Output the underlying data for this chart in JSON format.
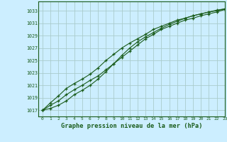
{
  "title": "Graphe pression niveau de la mer (hPa)",
  "xlim": [
    -0.5,
    23
  ],
  "ylim": [
    1016.0,
    1034.5
  ],
  "yticks": [
    1017,
    1019,
    1021,
    1023,
    1025,
    1027,
    1029,
    1031,
    1033
  ],
  "xticks": [
    0,
    1,
    2,
    3,
    4,
    5,
    6,
    7,
    8,
    9,
    10,
    11,
    12,
    13,
    14,
    15,
    16,
    17,
    18,
    19,
    20,
    21,
    22,
    23
  ],
  "bg_color": "#cceeff",
  "line_color": "#1a5c1a",
  "grid_color": "#aacccc",
  "line1": [
    1017.0,
    1017.8,
    1018.5,
    1019.5,
    1020.3,
    1021.0,
    1021.8,
    1022.5,
    1023.5,
    1024.5,
    1025.5,
    1026.5,
    1027.5,
    1028.5,
    1029.2,
    1030.0,
    1030.5,
    1031.0,
    1031.5,
    1031.8,
    1032.2,
    1032.5,
    1032.8,
    1033.2
  ],
  "line2": [
    1017.0,
    1018.2,
    1019.3,
    1020.5,
    1021.3,
    1022.0,
    1022.8,
    1023.8,
    1025.0,
    1026.0,
    1027.0,
    1027.8,
    1028.5,
    1029.2,
    1030.0,
    1030.5,
    1031.0,
    1031.5,
    1031.8,
    1032.2,
    1032.5,
    1032.8,
    1033.0,
    1033.3
  ],
  "line3": [
    1017.0,
    1017.3,
    1017.8,
    1018.5,
    1019.5,
    1020.2,
    1021.0,
    1022.0,
    1023.2,
    1024.5,
    1025.8,
    1027.0,
    1028.0,
    1028.8,
    1029.5,
    1030.2,
    1030.8,
    1031.3,
    1031.8,
    1032.2,
    1032.5,
    1032.8,
    1033.1,
    1033.3
  ]
}
